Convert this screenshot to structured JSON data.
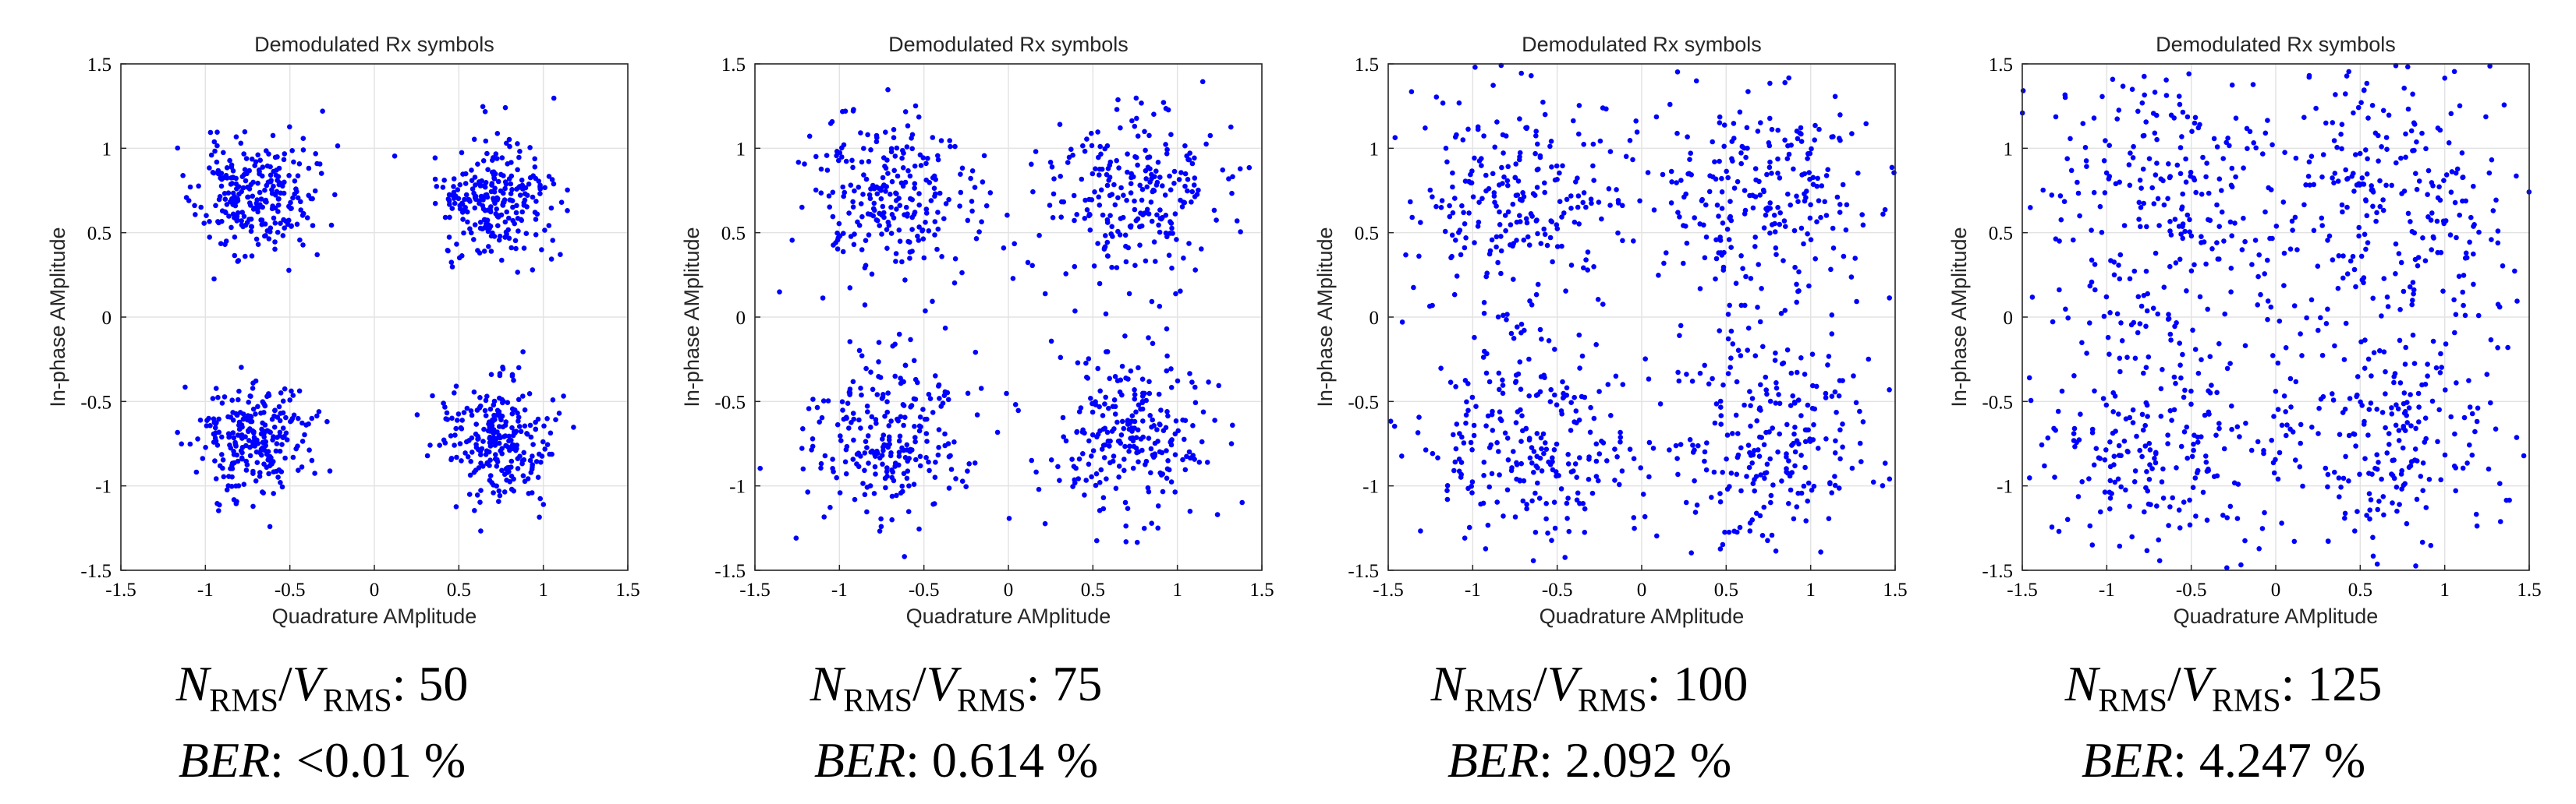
{
  "chart_data": [
    {
      "type": "scatter",
      "title": "Demodulated Rx symbols",
      "xlabel": "Quadrature AMplitude",
      "ylabel": "In-phase AMplitude",
      "xlim": [
        -1.5,
        1.5
      ],
      "ylim": [
        -1.5,
        1.5
      ],
      "xticks": [
        "-1.5",
        "-1",
        "-0.5",
        "0",
        "0.5",
        "1",
        "1.5"
      ],
      "yticks": [
        "1.5",
        "1",
        "0.5",
        "0",
        "-0.5",
        "-1",
        "-1.5"
      ],
      "grid": true,
      "marker_color": "#0000ff",
      "series": [
        {
          "name": "Rx symbols",
          "cluster_centers": [
            [
              -0.71,
              0.71
            ],
            [
              0.71,
              0.71
            ],
            [
              -0.71,
              -0.71
            ],
            [
              0.71,
              -0.71
            ]
          ],
          "spread_sigma": 0.17,
          "points_per_cluster": 260,
          "seed": 11
        }
      ],
      "caption": {
        "ratio_n": "N",
        "ratio_n_sub": "RMS",
        "ratio_v": "V",
        "ratio_v_sub": "RMS",
        "ratio_value": ": 50",
        "ber_label": "BER",
        "ber_value": ": <0.01 %"
      }
    },
    {
      "type": "scatter",
      "title": "Demodulated Rx symbols",
      "xlabel": "Quadrature AMplitude",
      "ylabel": "In-phase AMplitude",
      "xlim": [
        -1.5,
        1.5
      ],
      "ylim": [
        -1.5,
        1.5
      ],
      "xticks": [
        "-1.5",
        "-1",
        "-0.5",
        "0",
        "0.5",
        "1",
        "1.5"
      ],
      "yticks": [
        "1.5",
        "1",
        "0.5",
        "0",
        "-0.5",
        "-1",
        "-1.5"
      ],
      "grid": true,
      "marker_color": "#0000ff",
      "series": [
        {
          "name": "Rx symbols",
          "cluster_centers": [
            [
              -0.71,
              0.71
            ],
            [
              0.71,
              0.71
            ],
            [
              -0.71,
              -0.71
            ],
            [
              0.71,
              -0.71
            ]
          ],
          "spread_sigma": 0.25,
          "points_per_cluster": 250,
          "seed": 23
        }
      ],
      "caption": {
        "ratio_n": "N",
        "ratio_n_sub": "RMS",
        "ratio_v": "V",
        "ratio_v_sub": "RMS",
        "ratio_value": ": 75",
        "ber_label": "BER",
        "ber_value": ": 0.614 %"
      }
    },
    {
      "type": "scatter",
      "title": "Demodulated Rx symbols",
      "xlabel": "Quadrature AMplitude",
      "ylabel": "In-phase AMplitude",
      "xlim": [
        -1.5,
        1.5
      ],
      "ylim": [
        -1.5,
        1.5
      ],
      "xticks": [
        "-1.5",
        "-1",
        "-0.5",
        "0",
        "0.5",
        "1",
        "1.5"
      ],
      "yticks": [
        "1.5",
        "1",
        "0.5",
        "0",
        "-0.5",
        "-1",
        "-1.5"
      ],
      "grid": true,
      "marker_color": "#0000ff",
      "series": [
        {
          "name": "Rx symbols",
          "cluster_centers": [
            [
              -0.71,
              0.71
            ],
            [
              0.71,
              0.71
            ],
            [
              -0.71,
              -0.71
            ],
            [
              0.71,
              -0.71
            ]
          ],
          "spread_sigma": 0.33,
          "points_per_cluster": 250,
          "seed": 37
        }
      ],
      "caption": {
        "ratio_n": "N",
        "ratio_n_sub": "RMS",
        "ratio_v": "V",
        "ratio_v_sub": "RMS",
        "ratio_value": ": 100",
        "ber_label": "BER",
        "ber_value": ": 2.092 %"
      }
    },
    {
      "type": "scatter",
      "title": "Demodulated Rx symbols",
      "xlabel": "Quadrature AMplitude",
      "ylabel": "In-phase AMplitude",
      "xlim": [
        -1.5,
        1.5
      ],
      "ylim": [
        -1.5,
        1.5
      ],
      "xticks": [
        "-1.5",
        "-1",
        "-0.5",
        "0",
        "0.5",
        "1",
        "1.5"
      ],
      "yticks": [
        "1.5",
        "1",
        "0.5",
        "0",
        "-0.5",
        "-1",
        "-1.5"
      ],
      "grid": true,
      "marker_color": "#0000ff",
      "series": [
        {
          "name": "Rx symbols",
          "cluster_centers": [
            [
              -0.71,
              0.71
            ],
            [
              0.71,
              0.71
            ],
            [
              -0.71,
              -0.71
            ],
            [
              0.71,
              -0.71
            ]
          ],
          "spread_sigma": 0.4,
          "points_per_cluster": 250,
          "seed": 53
        }
      ],
      "caption": {
        "ratio_n": "N",
        "ratio_n_sub": "RMS",
        "ratio_v": "V",
        "ratio_v_sub": "RMS",
        "ratio_value": ": 125",
        "ber_label": "BER",
        "ber_value": ": 4.247 %"
      }
    }
  ]
}
